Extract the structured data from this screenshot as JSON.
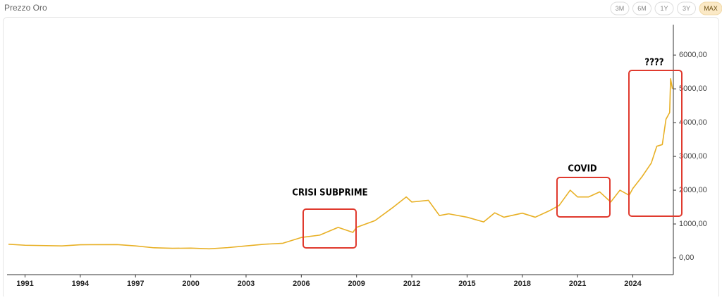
{
  "chart_data": {
    "type": "line",
    "title": "Prezzo Oro",
    "range_buttons": [
      "3M",
      "6M",
      "1Y",
      "3Y",
      "MAX"
    ],
    "active_range": "MAX",
    "x": [
      1990.1,
      1991,
      1993,
      1994,
      1996,
      1997,
      1998,
      1999,
      2000,
      2001,
      2002,
      2003,
      2004,
      2005,
      2006,
      2007,
      2008,
      2008.8,
      2009,
      2010,
      2011,
      2011.7,
      2012,
      2012.9,
      2013.3,
      2013.5,
      2014,
      2015,
      2015.9,
      2016.5,
      2017,
      2018,
      2018.7,
      2019.5,
      2020,
      2020.6,
      2021,
      2021.6,
      2022.2,
      2022.8,
      2023.3,
      2023.8,
      2024,
      2024.5,
      2025,
      2025.3,
      2025.6,
      2025.8,
      2026,
      2026.05,
      2026.15
    ],
    "series": [
      {
        "name": "Prezzo Oro",
        "color": "#e8b025",
        "values": [
          400,
          370,
          350,
          385,
          390,
          350,
          295,
          280,
          285,
          265,
          300,
          350,
          400,
          430,
          600,
          670,
          900,
          750,
          900,
          1100,
          1500,
          1800,
          1650,
          1700,
          1400,
          1250,
          1300,
          1200,
          1060,
          1330,
          1200,
          1320,
          1200,
          1400,
          1550,
          2000,
          1800,
          1800,
          1950,
          1650,
          2000,
          1850,
          2050,
          2400,
          2800,
          3300,
          3350,
          4100,
          4300,
          5300,
          5000
        ]
      }
    ],
    "xlim": [
      1990.1,
      2026.2
    ],
    "xticks": [
      1991,
      1994,
      1997,
      2000,
      2003,
      2006,
      2009,
      2012,
      2015,
      2018,
      2021,
      2024
    ],
    "ylim": [
      -500,
      6900
    ],
    "yticks": [
      {
        "value": 0,
        "label": "0,00"
      },
      {
        "value": 1000,
        "label": "1000,00"
      },
      {
        "value": 2000,
        "label": "2000,00"
      },
      {
        "value": 3000,
        "label": "3000,00"
      },
      {
        "value": 4000,
        "label": "4000,00"
      },
      {
        "value": 5000,
        "label": "5000,00"
      },
      {
        "value": 6000,
        "label": "6000,00"
      }
    ],
    "annotations": [
      "CRISI SUBPRIME",
      "COVID",
      "????"
    ]
  }
}
